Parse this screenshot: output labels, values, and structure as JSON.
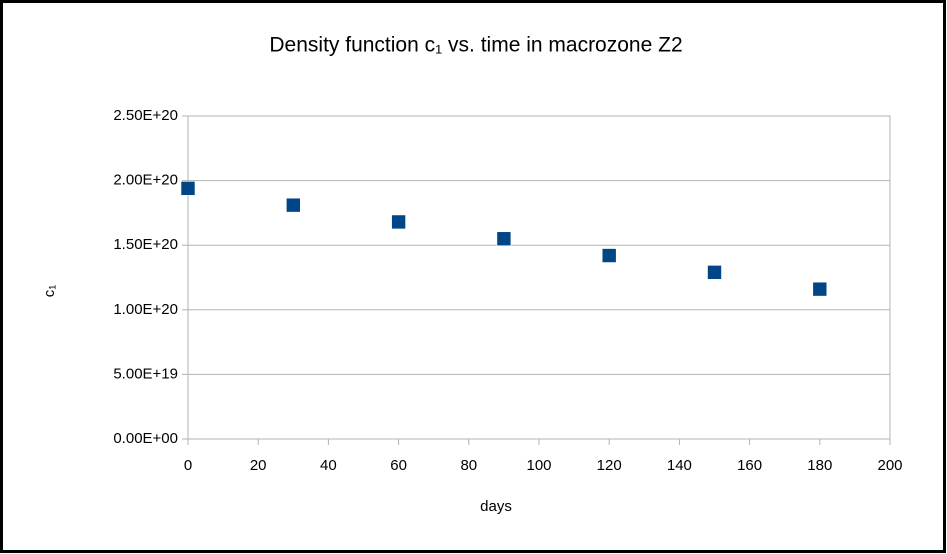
{
  "chart_data": {
    "type": "scatter",
    "title": "Density function c₁  vs. time in macrozone Z2",
    "xlabel": "days",
    "ylabel": "c₁",
    "x": [
      0,
      30,
      60,
      90,
      120,
      150,
      180
    ],
    "series": [
      {
        "color": "#004586",
        "values": [
          1.94e+20,
          1.81e+20,
          1.68e+20,
          1.55e+20,
          1.42e+20,
          1.29e+20,
          1.16e+20
        ]
      }
    ],
    "xlim": [
      0,
      200
    ],
    "xticks": [
      0,
      20,
      40,
      60,
      80,
      100,
      120,
      140,
      160,
      180,
      200
    ],
    "ylim": [
      0,
      2.5e+20
    ],
    "yticks": [
      {
        "value": 0,
        "label": "0.00E+00"
      },
      {
        "value": 5e+19,
        "label": "5.00E+19"
      },
      {
        "value": 1e+20,
        "label": "1.00E+20"
      },
      {
        "value": 1.5e+20,
        "label": "1.50E+20"
      },
      {
        "value": 2e+20,
        "label": "2.00E+20"
      },
      {
        "value": 2.5e+20,
        "label": "2.50E+20"
      }
    ],
    "grid": true
  }
}
